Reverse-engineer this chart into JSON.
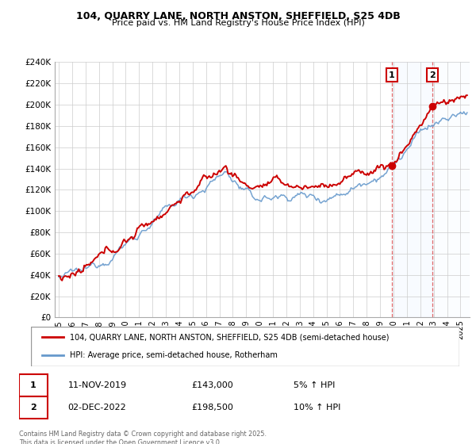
{
  "title1": "104, QUARRY LANE, NORTH ANSTON, SHEFFIELD, S25 4DB",
  "title2": "Price paid vs. HM Land Registry's House Price Index (HPI)",
  "legend_label1": "104, QUARRY LANE, NORTH ANSTON, SHEFFIELD, S25 4DB (semi-detached house)",
  "legend_label2": "HPI: Average price, semi-detached house, Rotherham",
  "red_color": "#cc0000",
  "blue_color": "#6699cc",
  "shade_color": "#ddeeff",
  "annotation1_text": "11-NOV-2019",
  "annotation1_value_text": "£143,000",
  "annotation1_pct_text": "5% ↑ HPI",
  "annotation1_price": 143000,
  "annotation2_text": "02-DEC-2022",
  "annotation2_value_text": "£198,500",
  "annotation2_pct_text": "10% ↑ HPI",
  "annotation2_price": 198500,
  "footer": "Contains HM Land Registry data © Crown copyright and database right 2025.\nThis data is licensed under the Open Government Licence v3.0.",
  "ylim": [
    0,
    240000
  ],
  "yticks": [
    0,
    20000,
    40000,
    60000,
    80000,
    100000,
    120000,
    140000,
    160000,
    180000,
    200000,
    220000,
    240000
  ],
  "sale1_t": 2019.875,
  "sale2_t": 2022.917,
  "shade_start": 2019.875,
  "shade_end": 2022.917,
  "xmin": 1994.7,
  "xmax": 2025.7
}
